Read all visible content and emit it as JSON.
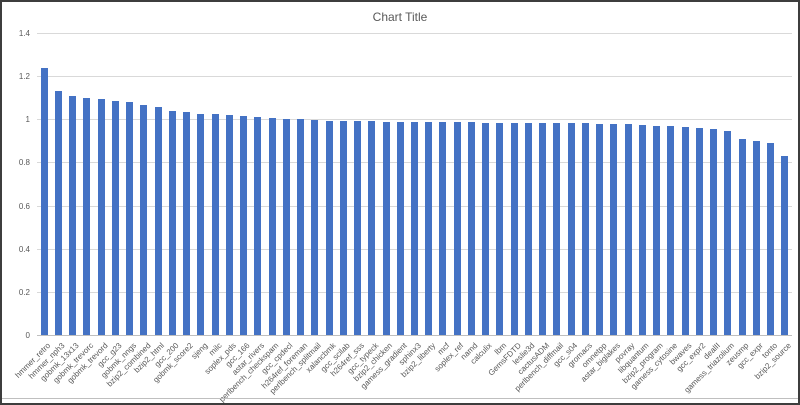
{
  "window": {
    "border_color": "#3d3d3d",
    "background": "#ffffff"
  },
  "chart_data": {
    "type": "bar",
    "title": "Chart Title",
    "categories": [
      "hmmer_retro",
      "hmmer_nph3",
      "gobmk_13x13",
      "gobmk_trevorc",
      "gobmk_trevord",
      "gcc_g23",
      "gobmk_nngs",
      "bzip2_combined",
      "bzip2_html",
      "gcc_200",
      "gobmk_score2",
      "sjeng",
      "milc",
      "soplex_pds",
      "gcc_166",
      "astar_rivers",
      "perlbench_checkspam",
      "gcc_cpdecl",
      "h264ref_foreman",
      "perlbench_splitmail",
      "xalancbmk",
      "gcc_scilab",
      "h264ref_sss",
      "gcc_typeck",
      "bzip2_chicken",
      "gamess_gradient",
      "sphinx3",
      "bzip2_liberty",
      "mcf",
      "soplex_ref",
      "namd",
      "calculix",
      "lbm",
      "GemsFDTD",
      "leslie3d",
      "cactusADM",
      "perlbench_diffmail",
      "gcc_s04",
      "gromacs",
      "omnetpp",
      "astar_biglakes",
      "povray",
      "libquantum",
      "bzip2_program",
      "gamess_cytosine",
      "bwaves",
      "gcc_expr2",
      "dealII",
      "gamess_triazolium",
      "zeusmp",
      "gcc_expr",
      "tonto",
      "bzip2_source"
    ],
    "values": [
      1.24,
      1.13,
      1.11,
      1.1,
      1.095,
      1.085,
      1.08,
      1.065,
      1.055,
      1.04,
      1.033,
      1.026,
      1.024,
      1.022,
      1.016,
      1.012,
      1.008,
      1.003,
      1.0,
      0.997,
      0.994,
      0.992,
      0.991,
      0.99,
      0.989,
      0.988,
      0.988,
      0.987,
      0.987,
      0.986,
      0.986,
      0.985,
      0.985,
      0.984,
      0.984,
      0.983,
      0.983,
      0.982,
      0.981,
      0.98,
      0.979,
      0.977,
      0.974,
      0.971,
      0.967,
      0.963,
      0.96,
      0.953,
      0.947,
      0.91,
      0.898,
      0.888,
      0.828
    ],
    "xlabel": "",
    "ylabel": "",
    "ylim": [
      0,
      1.4
    ],
    "ytick_labels": [
      "0",
      "0.2",
      "0.4",
      "0.6",
      "0.8",
      "1",
      "1.2",
      "1.4"
    ],
    "ytick_values": [
      0,
      0.2,
      0.4,
      0.6,
      0.8,
      1,
      1.2,
      1.4
    ],
    "grid": true,
    "legend": "none",
    "bar_color": "#4472c4",
    "gridline_color": "#d9d9d9",
    "axis_line_color": "#bfbfbf",
    "text_color": "#595959"
  }
}
